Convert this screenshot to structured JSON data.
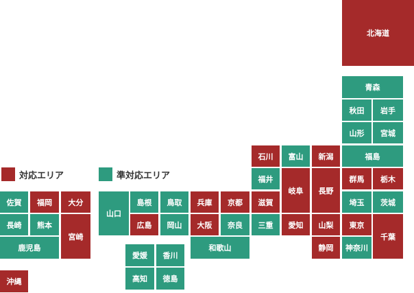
{
  "colors": {
    "supported": "#a52a2a",
    "semi_supported": "#2e9b7f"
  },
  "legend": {
    "supported": "対応エリア",
    "semi_supported": "準対応エリア"
  },
  "prefectures": {
    "hokkaido": {
      "name": "北海道",
      "status": "supported"
    },
    "aomori": {
      "name": "青森",
      "status": "semi"
    },
    "akita": {
      "name": "秋田",
      "status": "semi"
    },
    "iwate": {
      "name": "岩手",
      "status": "semi"
    },
    "yamagata": {
      "name": "山形",
      "status": "semi"
    },
    "miyagi": {
      "name": "宮城",
      "status": "semi"
    },
    "ishikawa": {
      "name": "石川",
      "status": "supported"
    },
    "toyama": {
      "name": "富山",
      "status": "semi"
    },
    "niigata": {
      "name": "新潟",
      "status": "supported"
    },
    "fukushima": {
      "name": "福島",
      "status": "semi"
    },
    "fukui": {
      "name": "福井",
      "status": "semi"
    },
    "gifu": {
      "name": "岐阜",
      "status": "supported"
    },
    "nagano": {
      "name": "長野",
      "status": "supported"
    },
    "gunma": {
      "name": "群馬",
      "status": "supported"
    },
    "tochigi": {
      "name": "栃木",
      "status": "supported"
    },
    "saitama": {
      "name": "埼玉",
      "status": "semi"
    },
    "ibaraki": {
      "name": "茨城",
      "status": "semi"
    },
    "tokyo": {
      "name": "東京",
      "status": "supported"
    },
    "chiba": {
      "name": "千葉",
      "status": "supported"
    },
    "kanagawa": {
      "name": "神奈川",
      "status": "semi"
    },
    "yamanashi": {
      "name": "山梨",
      "status": "supported"
    },
    "shizuoka": {
      "name": "静岡",
      "status": "supported"
    },
    "aichi": {
      "name": "愛知",
      "status": "supported"
    },
    "shiga": {
      "name": "滋賀",
      "status": "supported"
    },
    "mie": {
      "name": "三重",
      "status": "semi"
    },
    "kyoto": {
      "name": "京都",
      "status": "supported"
    },
    "nara": {
      "name": "奈良",
      "status": "semi"
    },
    "osaka": {
      "name": "大阪",
      "status": "supported"
    },
    "wakayama": {
      "name": "和歌山",
      "status": "semi"
    },
    "hyogo": {
      "name": "兵庫",
      "status": "supported"
    },
    "tottori": {
      "name": "鳥取",
      "status": "semi"
    },
    "okayama": {
      "name": "岡山",
      "status": "semi"
    },
    "shimane": {
      "name": "島根",
      "status": "semi"
    },
    "hiroshima": {
      "name": "広島",
      "status": "supported"
    },
    "yamaguchi": {
      "name": "山口",
      "status": "semi"
    },
    "ehime": {
      "name": "愛媛",
      "status": "semi"
    },
    "kagawa": {
      "name": "香川",
      "status": "semi"
    },
    "kochi": {
      "name": "高知",
      "status": "semi"
    },
    "tokushima": {
      "name": "徳島",
      "status": "semi"
    },
    "saga": {
      "name": "佐賀",
      "status": "semi"
    },
    "fukuoka": {
      "name": "福岡",
      "status": "supported"
    },
    "oita": {
      "name": "大分",
      "status": "supported"
    },
    "nagasaki": {
      "name": "長崎",
      "status": "semi"
    },
    "kumamoto": {
      "name": "熊本",
      "status": "semi"
    },
    "miyazaki": {
      "name": "宮崎",
      "status": "supported"
    },
    "kagoshima": {
      "name": "鹿児島",
      "status": "semi"
    },
    "okinawa": {
      "name": "沖縄",
      "status": "supported"
    }
  }
}
